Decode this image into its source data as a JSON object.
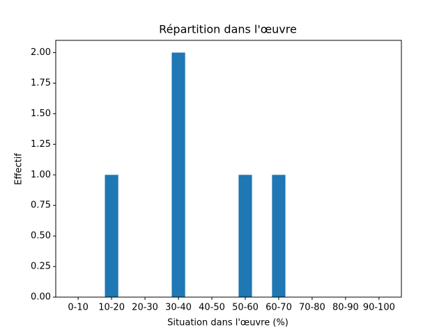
{
  "chart_data": {
    "type": "bar",
    "title": "Répartition dans l'œuvre",
    "xlabel": "Situation dans l'œuvre (%)",
    "ylabel": "Effectif",
    "categories": [
      "0-10",
      "10-20",
      "20-30",
      "30-40",
      "40-50",
      "50-60",
      "60-70",
      "70-80",
      "80-90",
      "90-100"
    ],
    "values": [
      0,
      1,
      0,
      2,
      0,
      1,
      1,
      0,
      0,
      0
    ],
    "color": "#1f77b4",
    "ylim": [
      0,
      2.1
    ],
    "yticks": [
      {
        "value": 0,
        "label": "0.00"
      },
      {
        "value": 0.25,
        "label": "0.25"
      },
      {
        "value": 0.5,
        "label": "0.50"
      },
      {
        "value": 0.75,
        "label": "0.75"
      },
      {
        "value": 1,
        "label": "1.00"
      },
      {
        "value": 1.25,
        "label": "1.25"
      },
      {
        "value": 1.5,
        "label": "1.50"
      },
      {
        "value": 1.75,
        "label": "1.75"
      },
      {
        "value": 2,
        "label": "2.00"
      }
    ]
  }
}
